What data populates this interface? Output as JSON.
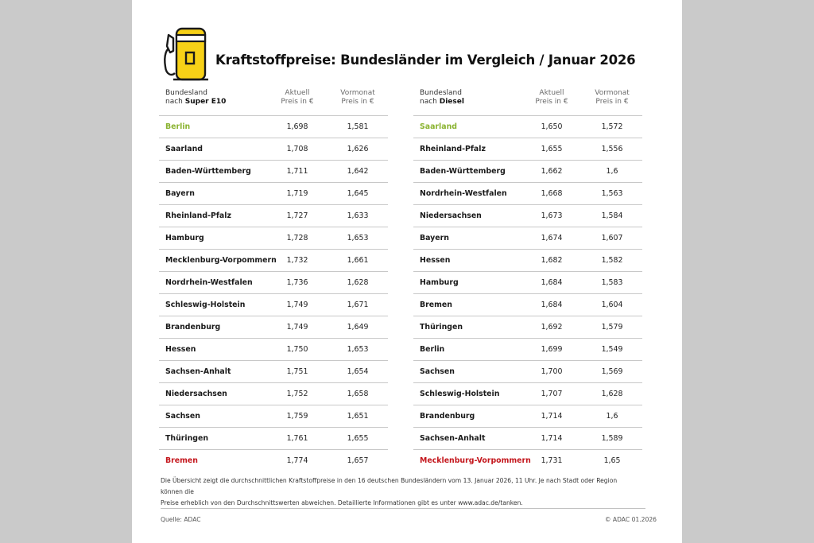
{
  "title": "Kraftstoffpreise: Bundesländer im Vergleich / Januar 2026",
  "colors": {
    "accent_yellow": "#f7d117",
    "best_green": "#8ab330",
    "worst_red": "#c4161c"
  },
  "icon": "fuel-pump-icon",
  "left_table": {
    "head_line1": "Bundesland",
    "head_line2_prefix": "nach ",
    "head_fuel": "Super E10",
    "col_current_1": "Aktuell",
    "col_current_2": "Preis in €",
    "col_prev_1": "Vormonat",
    "col_prev_2": "Preis in €",
    "rows": [
      {
        "state": "Berlin",
        "current": "1,698",
        "previous": "1,581",
        "highlight": "best"
      },
      {
        "state": "Saarland",
        "current": "1,708",
        "previous": "1,626"
      },
      {
        "state": "Baden-Württemberg",
        "current": "1,711",
        "previous": "1,642"
      },
      {
        "state": "Bayern",
        "current": "1,719",
        "previous": "1,645"
      },
      {
        "state": "Rheinland-Pfalz",
        "current": "1,727",
        "previous": "1,633"
      },
      {
        "state": "Hamburg",
        "current": "1,728",
        "previous": "1,653"
      },
      {
        "state": "Mecklenburg-Vorpommern",
        "current": "1,732",
        "previous": "1,661"
      },
      {
        "state": "Nordrhein-Westfalen",
        "current": "1,736",
        "previous": "1,628"
      },
      {
        "state": "Schleswig-Holstein",
        "current": "1,749",
        "previous": "1,671"
      },
      {
        "state": "Brandenburg",
        "current": "1,749",
        "previous": "1,649"
      },
      {
        "state": "Hessen",
        "current": "1,750",
        "previous": "1,653"
      },
      {
        "state": "Sachsen-Anhalt",
        "current": "1,751",
        "previous": "1,654"
      },
      {
        "state": "Niedersachsen",
        "current": "1,752",
        "previous": "1,658"
      },
      {
        "state": "Sachsen",
        "current": "1,759",
        "previous": "1,651"
      },
      {
        "state": "Thüringen",
        "current": "1,761",
        "previous": "1,655"
      },
      {
        "state": "Bremen",
        "current": "1,774",
        "previous": "1,657",
        "highlight": "worst"
      }
    ]
  },
  "right_table": {
    "head_line1": "Bundesland",
    "head_line2_prefix": "nach ",
    "head_fuel": "Diesel",
    "col_current_1": "Aktuell",
    "col_current_2": "Preis in €",
    "col_prev_1": "Vormonat",
    "col_prev_2": "Preis in €",
    "rows": [
      {
        "state": "Saarland",
        "current": "1,650",
        "previous": "1,572",
        "highlight": "best"
      },
      {
        "state": "Rheinland-Pfalz",
        "current": "1,655",
        "previous": "1,556"
      },
      {
        "state": "Baden-Württemberg",
        "current": "1,662",
        "previous": "1,6"
      },
      {
        "state": "Nordrhein-Westfalen",
        "current": "1,668",
        "previous": "1,563"
      },
      {
        "state": "Niedersachsen",
        "current": "1,673",
        "previous": "1,584"
      },
      {
        "state": "Bayern",
        "current": "1,674",
        "previous": "1,607"
      },
      {
        "state": "Hessen",
        "current": "1,682",
        "previous": "1,582"
      },
      {
        "state": "Hamburg",
        "current": "1,684",
        "previous": "1,583"
      },
      {
        "state": "Bremen",
        "current": "1,684",
        "previous": "1,604"
      },
      {
        "state": "Thüringen",
        "current": "1,692",
        "previous": "1,579"
      },
      {
        "state": "Berlin",
        "current": "1,699",
        "previous": "1,549"
      },
      {
        "state": "Sachsen",
        "current": "1,700",
        "previous": "1,569"
      },
      {
        "state": "Schleswig-Holstein",
        "current": "1,707",
        "previous": "1,628"
      },
      {
        "state": "Brandenburg",
        "current": "1,714",
        "previous": "1,6"
      },
      {
        "state": "Sachsen-Anhalt",
        "current": "1,714",
        "previous": "1,589"
      },
      {
        "state": "Mecklenburg-Vorpommern",
        "current": "1,731",
        "previous": "1,65",
        "highlight": "worst"
      }
    ]
  },
  "note_line1": "Die Übersicht zeigt die durchschnittlichen Kraftstoffpreise in den 16 deutschen Bundesländern vom 13. Januar 2026, 11 Uhr. Je nach Stadt oder Region können die",
  "note_line2": "Preise erheblich von den Durchschnittswerten abweichen. Detaillierte Informationen gibt es unter www.adac.de/tanken.",
  "source": "Quelle: ADAC",
  "copyright": "© ADAC 01.2026"
}
